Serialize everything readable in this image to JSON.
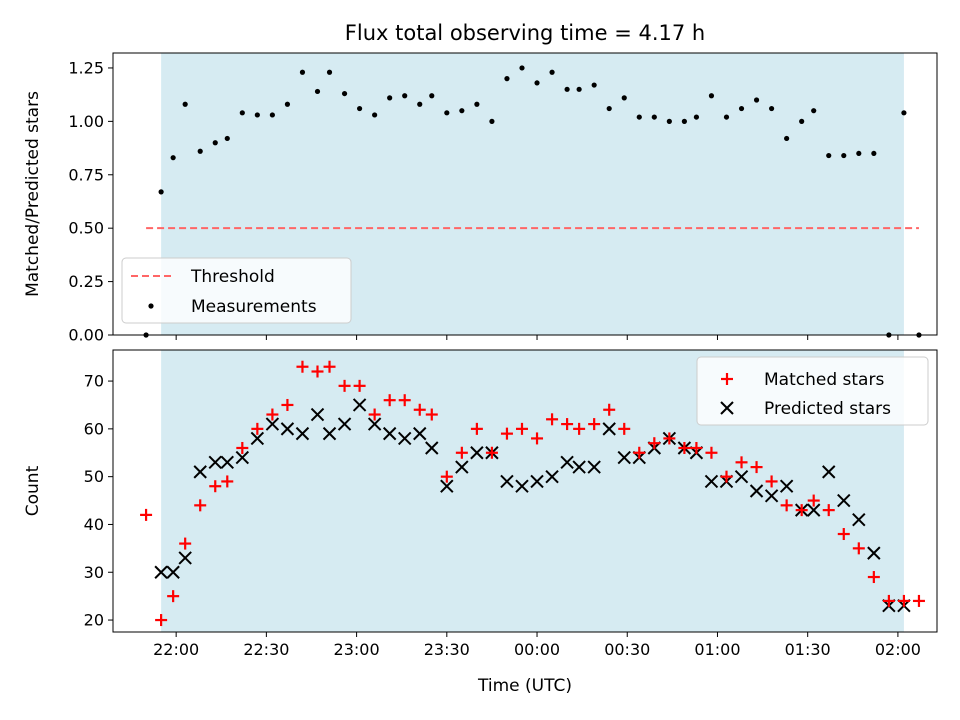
{
  "chart_data": {
    "type": "scatter",
    "title": "Flux total observing time = 4.17 h",
    "xlabel": "Time (UTC)",
    "x_ticks": [
      "22:00",
      "22:30",
      "23:00",
      "23:30",
      "00:00",
      "00:30",
      "01:00",
      "01:30",
      "02:00"
    ],
    "shaded_region": {
      "color": "#add8e6",
      "start": "21:55",
      "end": "02:02"
    },
    "panels": [
      {
        "id": "ratio",
        "ylabel": "Matched/Predicted stars",
        "ylim": [
          0,
          1.32
        ],
        "y_ticks": [
          "0.00",
          "0.25",
          "0.50",
          "0.75",
          "1.00",
          "1.25"
        ],
        "y_tick_values": [
          0,
          0.25,
          0.5,
          0.75,
          1.0,
          1.25
        ],
        "legend": {
          "position": "lower left",
          "entries": [
            "Threshold",
            "Measurements"
          ]
        },
        "threshold": {
          "name": "Threshold",
          "value": 0.5,
          "x_start": "21:50",
          "x_end": "02:07",
          "color": "#ff6666",
          "style": "dashed"
        },
        "series": [
          {
            "name": "Measurements",
            "marker": "dot",
            "color": "#000000",
            "x": [
              "21:50",
              "21:55",
              "21:59",
              "22:03",
              "22:08",
              "22:13",
              "22:17",
              "22:22",
              "22:27",
              "22:32",
              "22:37",
              "22:42",
              "22:47",
              "22:51",
              "22:56",
              "23:01",
              "23:06",
              "23:11",
              "23:16",
              "23:21",
              "23:25",
              "23:30",
              "23:35",
              "23:40",
              "23:45",
              "23:50",
              "23:55",
              "00:00",
              "00:05",
              "00:10",
              "00:14",
              "00:19",
              "00:24",
              "00:29",
              "00:34",
              "00:39",
              "00:44",
              "00:49",
              "00:53",
              "00:58",
              "01:03",
              "01:08",
              "01:13",
              "01:18",
              "01:23",
              "01:28",
              "01:32",
              "01:37",
              "01:42",
              "01:47",
              "01:52",
              "01:57",
              "02:02",
              "02:07"
            ],
            "y": [
              0.0,
              0.67,
              0.83,
              1.08,
              0.86,
              0.9,
              0.92,
              1.04,
              1.03,
              1.03,
              1.08,
              1.23,
              1.14,
              1.23,
              1.13,
              1.06,
              1.03,
              1.11,
              1.12,
              1.08,
              1.12,
              1.04,
              1.05,
              1.08,
              1.0,
              1.2,
              1.25,
              1.18,
              1.23,
              1.15,
              1.15,
              1.17,
              1.06,
              1.11,
              1.02,
              1.02,
              1.0,
              1.0,
              1.02,
              1.12,
              1.02,
              1.06,
              1.1,
              1.06,
              0.92,
              1.0,
              1.05,
              0.84,
              0.84,
              0.85,
              0.85,
              0.0,
              1.04,
              0.0
            ]
          }
        ]
      },
      {
        "id": "count",
        "ylabel": "Count",
        "ylim": [
          17.5,
          76.5
        ],
        "y_ticks": [
          "20",
          "30",
          "40",
          "50",
          "60",
          "70"
        ],
        "y_tick_values": [
          20,
          30,
          40,
          50,
          60,
          70
        ],
        "legend": {
          "position": "upper right",
          "entries": [
            "Matched stars",
            "Predicted stars"
          ]
        },
        "series": [
          {
            "name": "Matched stars",
            "marker": "plus",
            "color": "#ff0000",
            "x": [
              "21:50",
              "21:55",
              "21:59",
              "22:03",
              "22:08",
              "22:13",
              "22:17",
              "22:22",
              "22:27",
              "22:32",
              "22:37",
              "22:42",
              "22:47",
              "22:51",
              "22:56",
              "23:01",
              "23:06",
              "23:11",
              "23:16",
              "23:21",
              "23:25",
              "23:30",
              "23:35",
              "23:40",
              "23:45",
              "23:50",
              "23:55",
              "00:00",
              "00:05",
              "00:10",
              "00:14",
              "00:19",
              "00:24",
              "00:29",
              "00:34",
              "00:39",
              "00:44",
              "00:49",
              "00:53",
              "00:58",
              "01:03",
              "01:08",
              "01:13",
              "01:18",
              "01:23",
              "01:28",
              "01:32",
              "01:37",
              "01:42",
              "01:47",
              "01:52",
              "01:57",
              "02:02",
              "02:07"
            ],
            "y": [
              42,
              20,
              25,
              36,
              44,
              48,
              49,
              56,
              60,
              63,
              65,
              73,
              72,
              73,
              69,
              69,
              63,
              66,
              66,
              64,
              63,
              50,
              55,
              60,
              55,
              59,
              60,
              58,
              62,
              61,
              60,
              61,
              64,
              60,
              55,
              57,
              58,
              56,
              56,
              55,
              50,
              53,
              52,
              49,
              44,
              43,
              45,
              43,
              38,
              35,
              29,
              24,
              24,
              24
            ]
          },
          {
            "name": "Predicted stars",
            "marker": "x",
            "color": "#000000",
            "x": [
              "21:55",
              "21:59",
              "22:03",
              "22:08",
              "22:13",
              "22:17",
              "22:22",
              "22:27",
              "22:32",
              "22:37",
              "22:42",
              "22:47",
              "22:51",
              "22:56",
              "23:01",
              "23:06",
              "23:11",
              "23:16",
              "23:21",
              "23:25",
              "23:30",
              "23:35",
              "23:40",
              "23:45",
              "23:50",
              "23:55",
              "00:00",
              "00:05",
              "00:10",
              "00:14",
              "00:19",
              "00:24",
              "00:29",
              "00:34",
              "00:39",
              "00:44",
              "00:49",
              "00:53",
              "00:58",
              "01:03",
              "01:08",
              "01:13",
              "01:18",
              "01:23",
              "01:28",
              "01:32",
              "01:37",
              "01:42",
              "01:47",
              "01:52",
              "01:57",
              "02:02"
            ],
            "y": [
              30,
              30,
              33,
              51,
              53,
              53,
              54,
              58,
              61,
              60,
              59,
              63,
              59,
              61,
              65,
              61,
              59,
              58,
              59,
              56,
              48,
              52,
              55,
              55,
              49,
              48,
              49,
              50,
              53,
              52,
              52,
              60,
              54,
              54,
              56,
              58,
              56,
              55,
              49,
              49,
              50,
              47,
              46,
              48,
              43,
              43,
              51,
              45,
              41,
              34,
              23,
              23
            ]
          }
        ]
      }
    ]
  }
}
